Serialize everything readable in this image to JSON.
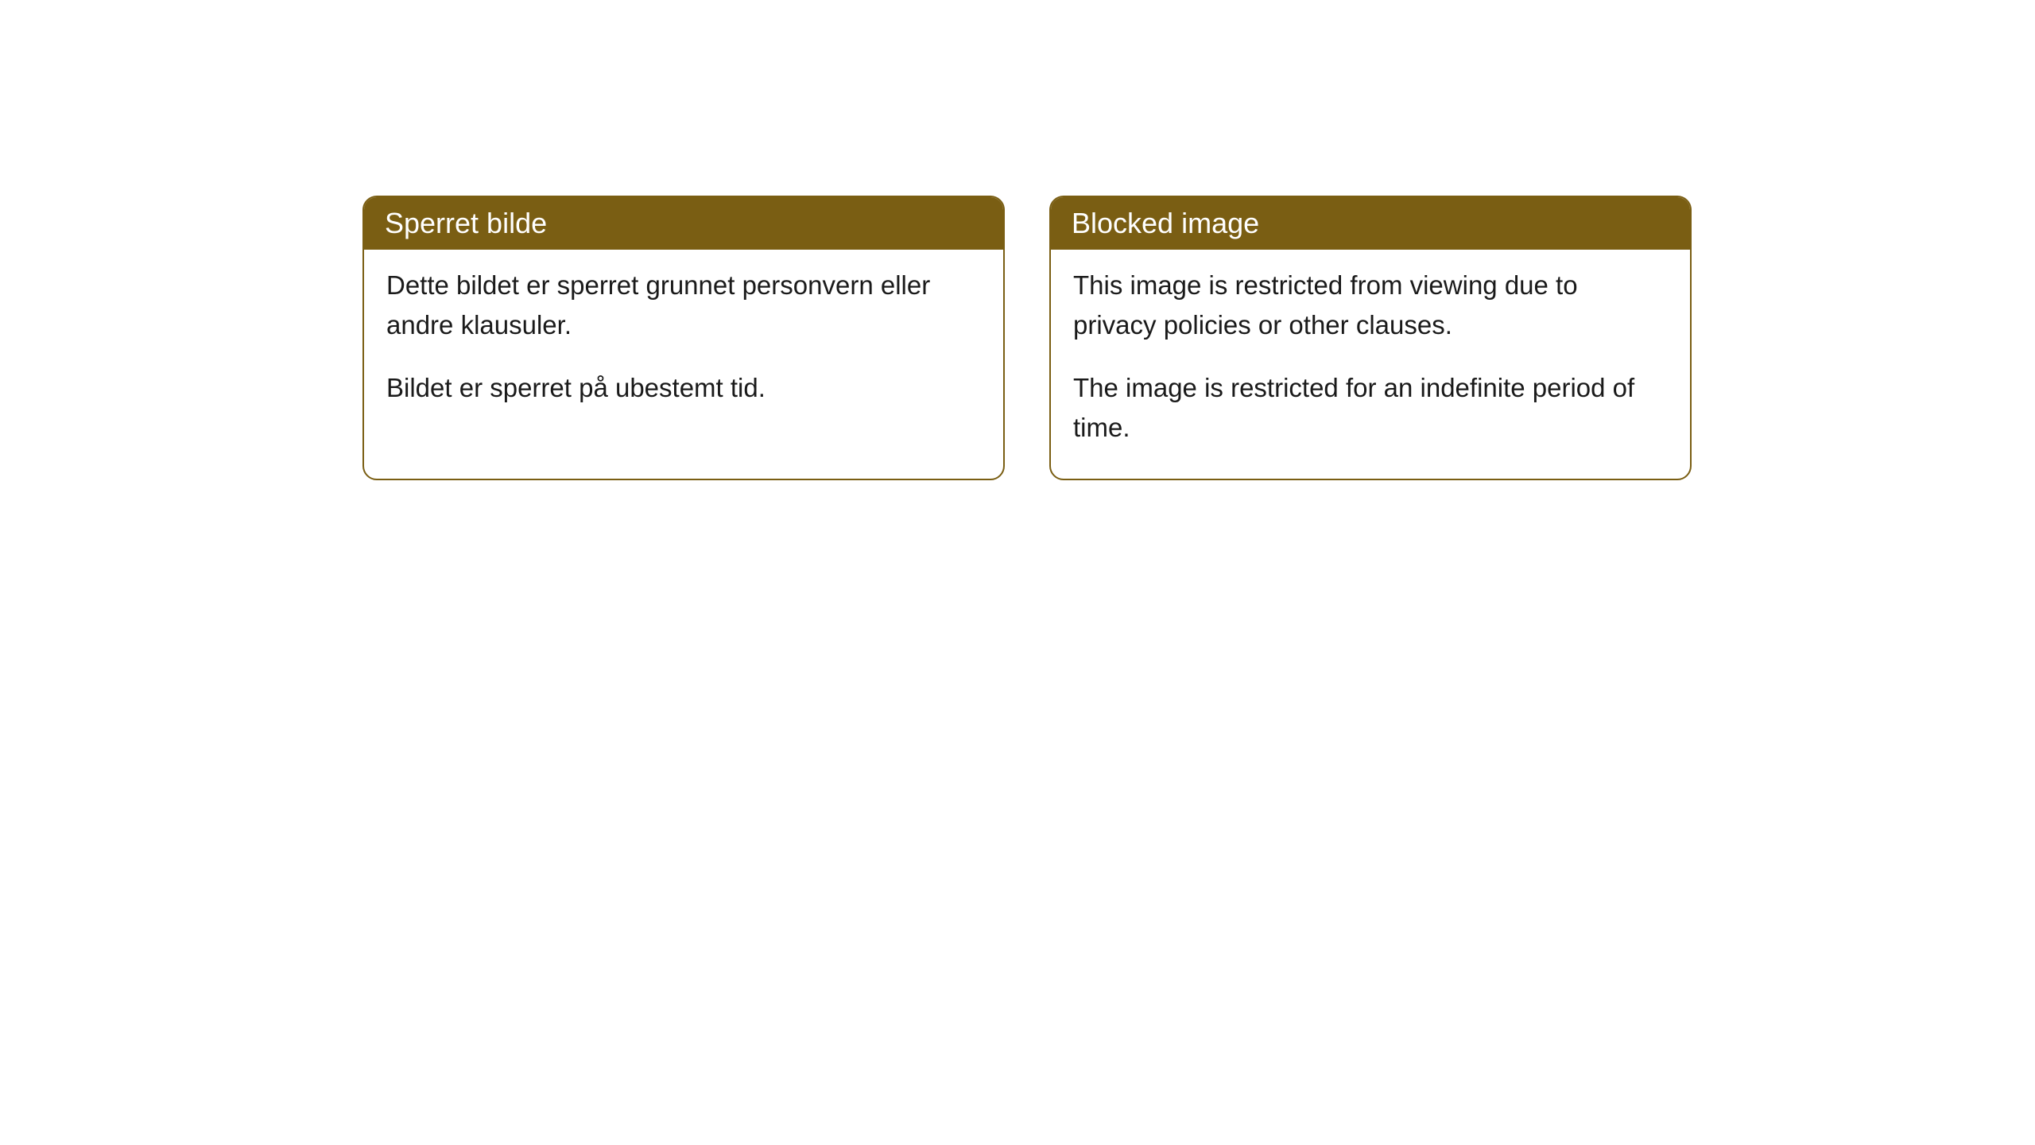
{
  "cards": [
    {
      "title": "Sperret bilde",
      "paragraph1": "Dette bildet er sperret grunnet personvern eller andre klausuler.",
      "paragraph2": "Bildet er sperret på ubestemt tid."
    },
    {
      "title": "Blocked image",
      "paragraph1": "This image is restricted from viewing due to privacy policies or other clauses.",
      "paragraph2": "The image is restricted for an indefinite period of time."
    }
  ],
  "styling": {
    "header_bg_color": "#7a5e13",
    "header_text_color": "#ffffff",
    "border_color": "#7a5e13",
    "body_text_color": "#1a1a1a",
    "page_bg_color": "#ffffff",
    "border_radius": 18,
    "title_fontsize": 36,
    "body_fontsize": 33
  }
}
